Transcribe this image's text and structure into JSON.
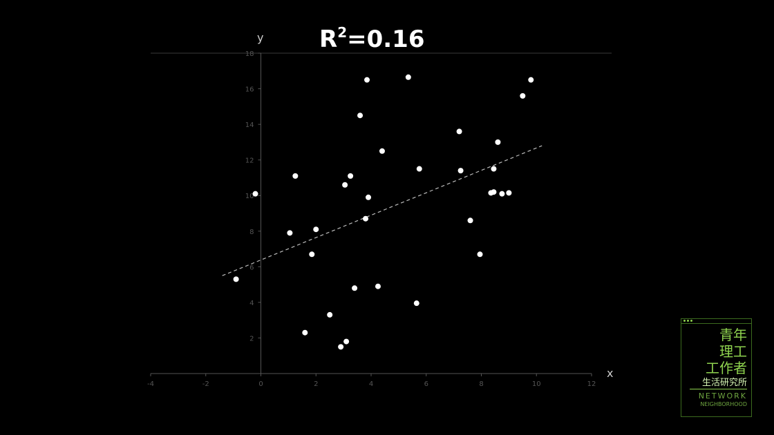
{
  "chart_data": {
    "type": "scatter",
    "title_base": "R",
    "title_sup": "2",
    "title_value": "=0.16",
    "xlabel": "x",
    "ylabel": "y",
    "xlim": [
      -4,
      12
    ],
    "ylim": [
      0,
      18
    ],
    "xticks": [
      -4,
      -2,
      0,
      2,
      4,
      6,
      8,
      10,
      12
    ],
    "yticks": [
      0,
      2,
      4,
      6,
      8,
      10,
      12,
      14,
      16,
      18
    ],
    "trendline": {
      "style": "dashed",
      "x": [
        -1.4,
        10.2
      ],
      "y": [
        5.5,
        12.8
      ]
    },
    "points": [
      {
        "x": -0.9,
        "y": 5.3
      },
      {
        "x": -0.2,
        "y": 10.1
      },
      {
        "x": 1.05,
        "y": 7.9
      },
      {
        "x": 1.25,
        "y": 11.1
      },
      {
        "x": 1.6,
        "y": 2.3
      },
      {
        "x": 1.85,
        "y": 6.7
      },
      {
        "x": 2.0,
        "y": 8.1
      },
      {
        "x": 2.5,
        "y": 3.3
      },
      {
        "x": 2.9,
        "y": 1.5
      },
      {
        "x": 3.1,
        "y": 1.8
      },
      {
        "x": 3.05,
        "y": 10.6
      },
      {
        "x": 3.25,
        "y": 11.1
      },
      {
        "x": 3.4,
        "y": 4.8
      },
      {
        "x": 3.6,
        "y": 14.5
      },
      {
        "x": 3.8,
        "y": 8.7
      },
      {
        "x": 3.85,
        "y": 16.5
      },
      {
        "x": 3.9,
        "y": 9.9
      },
      {
        "x": 4.25,
        "y": 4.9
      },
      {
        "x": 4.4,
        "y": 12.5
      },
      {
        "x": 5.35,
        "y": 16.65
      },
      {
        "x": 5.65,
        "y": 3.95
      },
      {
        "x": 5.75,
        "y": 11.5
      },
      {
        "x": 7.2,
        "y": 13.6
      },
      {
        "x": 7.25,
        "y": 11.4
      },
      {
        "x": 7.6,
        "y": 8.6
      },
      {
        "x": 7.95,
        "y": 6.7
      },
      {
        "x": 8.35,
        "y": 10.15
      },
      {
        "x": 8.45,
        "y": 10.2
      },
      {
        "x": 8.45,
        "y": 11.5
      },
      {
        "x": 8.6,
        "y": 13.0
      },
      {
        "x": 8.75,
        "y": 10.1
      },
      {
        "x": 9.0,
        "y": 10.15
      },
      {
        "x": 9.5,
        "y": 15.6
      },
      {
        "x": 9.8,
        "y": 16.5
      }
    ]
  },
  "logo": {
    "line1": "青年",
    "line2": "理工",
    "line3": "工作者",
    "line4": "生活研究所",
    "line5": "NETWORK",
    "line6": "NEIGHBORHOOD"
  }
}
